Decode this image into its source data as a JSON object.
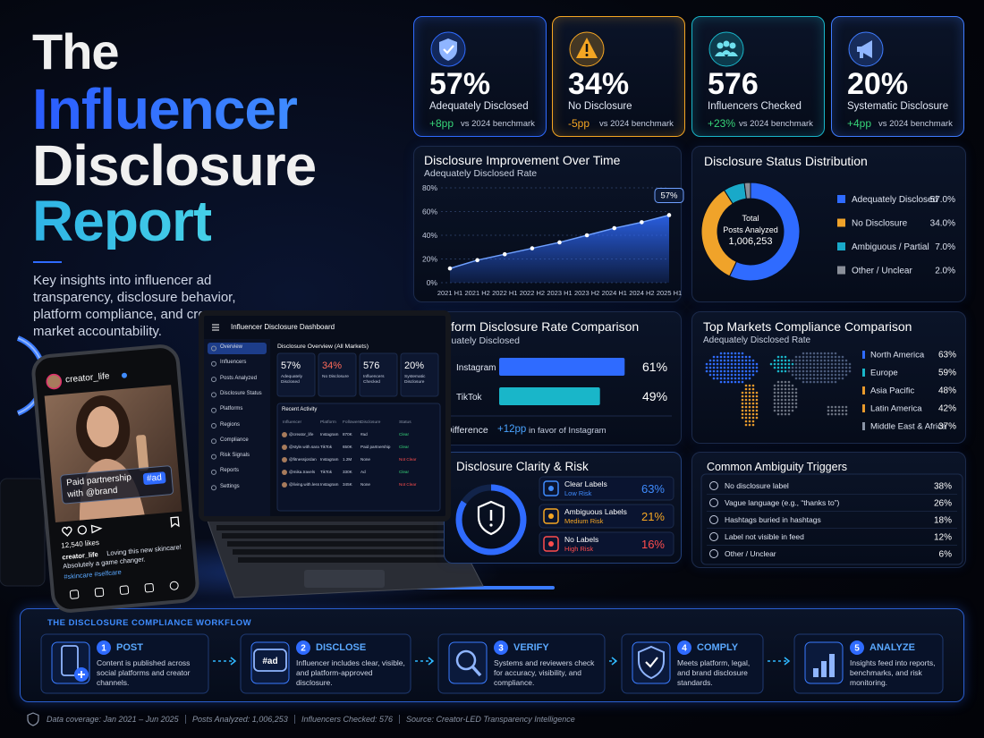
{
  "header": {
    "title": [
      "The",
      "Influencer",
      "Disclosure",
      "Report"
    ],
    "subtitle": "Key insights into influencer ad transparency, disclosure behavior, platform compliance, and cross-market accountability."
  },
  "kpis": [
    {
      "value": "57%",
      "label": "Adequately Disclosed",
      "change": "+8pp",
      "note": "vs 2024 benchmark",
      "color": "#2f6bff",
      "change_color": "#37d67a"
    },
    {
      "value": "34%",
      "label": "No Disclosure",
      "change": "-5pp",
      "note": "vs 2024 benchmark",
      "color": "#f5a623",
      "change_color": "#f5a623"
    },
    {
      "value": "576",
      "label": "Influencers Checked",
      "change": "+23%",
      "note": "vs 2024 benchmark",
      "color": "#19b6c9",
      "change_color": "#37d67a"
    },
    {
      "value": "20%",
      "label": "Systematic Disclosure",
      "change": "+4pp",
      "note": "vs 2024 benchmark",
      "color": "#3f7cff",
      "change_color": "#37d67a"
    }
  ],
  "chart_data": [
    {
      "type": "area",
      "title": "Disclosure Improvement Over Time",
      "subtitle": "Adequately Disclosed Rate",
      "categories": [
        "2021 H1",
        "2021 H2",
        "2022 H1",
        "2022 H2",
        "2023 H1",
        "2023 H2",
        "2024 H1",
        "2024 H2",
        "2025 H1"
      ],
      "values": [
        12,
        19,
        24,
        29,
        34,
        40,
        46,
        51,
        57
      ],
      "value_labels": [
        null,
        null,
        null,
        null,
        null,
        null,
        null,
        null,
        "57%"
      ],
      "color": "#2f6bff",
      "ylim": [
        0,
        80
      ],
      "yticks": [
        {
          "value": 0,
          "label": "0%"
        },
        {
          "value": 20,
          "label": "20%"
        },
        {
          "value": 40,
          "label": "40%"
        },
        {
          "value": 60,
          "label": "60%"
        },
        {
          "value": 80,
          "label": "80%"
        }
      ],
      "grid": true
    },
    {
      "type": "donut",
      "title": "Disclosure Status Distribution",
      "center_text": [
        "Total",
        "Posts Analyzed",
        "1,006,253"
      ],
      "categories": [
        "Adequately Disclosed",
        "No Disclosure",
        "Ambiguous / Partial",
        "Other / Unclear"
      ],
      "values": [
        57,
        34,
        7,
        2
      ],
      "value_labels": [
        "57.0%",
        "34.0%",
        "7.0%",
        "2.0%"
      ],
      "colors": [
        "#2f6bff",
        "#f0a32a",
        "#19a9c9",
        "#8a8f99"
      ]
    },
    {
      "type": "hbar",
      "title": "Platform Disclosure Rate Comparison",
      "subtitle": "Adequately Disclosed",
      "categories": [
        "Instagram",
        "TikTok"
      ],
      "values": [
        61,
        49
      ],
      "value_labels": [
        "61%",
        "49%"
      ],
      "colors": [
        "#2f6bff",
        "#19b6c9"
      ],
      "difference": {
        "label": "Difference",
        "value": "+12pp",
        "note": "in favor of Instagram"
      }
    }
  ],
  "markets": {
    "title": "Top Markets Compliance Comparison",
    "subtitle": "Adequately Disclosed Rate",
    "rows": [
      {
        "name": "North America",
        "value": "63%",
        "color": "#2f6bff"
      },
      {
        "name": "Europe",
        "value": "59%",
        "color": "#19b6c9"
      },
      {
        "name": "Asia Pacific",
        "value": "48%",
        "color": "#e89a2c"
      },
      {
        "name": "Latin America",
        "value": "42%",
        "color": "#e89a2c"
      },
      {
        "name": "Middle East & Africa",
        "value": "37%",
        "color": "#8a94a6"
      }
    ]
  },
  "clarity": {
    "title": "Disclosure Clarity & Risk",
    "rows": [
      {
        "label": "Clear Labels",
        "risk": "Low Risk",
        "value": "63%",
        "color": "#3f8cff"
      },
      {
        "label": "Ambiguous Labels",
        "risk": "Medium Risk",
        "value": "21%",
        "color": "#f5a623"
      },
      {
        "label": "No Labels",
        "risk": "High Risk",
        "value": "16%",
        "color": "#ff4d4d"
      }
    ]
  },
  "triggers": {
    "title": "Common Ambiguity Triggers",
    "rows": [
      {
        "label": "No disclosure label",
        "value": "38%"
      },
      {
        "label": "Vague language (e.g., “thanks to”)",
        "value": "26%"
      },
      {
        "label": "Hashtags buried in hashtags",
        "value": "18%"
      },
      {
        "label": "Label not visible in feed",
        "value": "12%"
      },
      {
        "label": "Other / Unclear",
        "value": "6%"
      }
    ]
  },
  "workflow": {
    "title": "THE DISCLOSURE COMPLIANCE WORKFLOW",
    "bubble": "#ad",
    "steps": [
      {
        "num": "1",
        "title": "POST",
        "text": "Content is published across social platforms and creator channels."
      },
      {
        "num": "2",
        "title": "DISCLOSE",
        "text": "Influencer includes clear, visible, and platform-approved disclosure."
      },
      {
        "num": "3",
        "title": "VERIFY",
        "text": "Systems and reviewers check for accuracy, visibility, and compliance."
      },
      {
        "num": "4",
        "title": "COMPLY",
        "text": "Meets platform, legal, and brand disclosure standards."
      },
      {
        "num": "5",
        "title": "ANALYZE",
        "text": "Insights feed into reports, benchmarks, and risk monitoring."
      }
    ]
  },
  "footer": [
    "Data coverage: Jan 2021 – Jun 2025",
    "Posts Analyzed: 1,006,253",
    "Influencers Checked: 576",
    "Source: Creator-LED Transparency Intelligence"
  ],
  "phone": {
    "username": "creator_life",
    "partnership": "Paid partnership with @brand",
    "tag": "#ad",
    "likes": "12,540 likes",
    "caption_user": "creator_life",
    "caption": "Loving this new skincare! Absolutely a game changer.",
    "hashtags": "#skincare #selfcare"
  },
  "laptop": {
    "title": "Influencer Disclosure Dashboard",
    "nav": [
      "Overview",
      "Influencers",
      "Posts Analyzed",
      "Disclosure Status",
      "Platforms",
      "Regions",
      "Compliance",
      "Risk Signals",
      "Reports",
      "Settings"
    ],
    "overview_title": "Disclosure Overview (All Markets)",
    "kpis": [
      {
        "value": "57%",
        "label": "Adequately Disclosed"
      },
      {
        "value": "34%",
        "label": "No Disclosure"
      },
      {
        "value": "576",
        "label": "Influencers Checked"
      },
      {
        "value": "20%",
        "label": "Systematic Disclosure"
      }
    ],
    "activity_title": "Recent Activity",
    "columns": [
      "Influencer",
      "Platform",
      "Followers",
      "Disclosure",
      "Status"
    ],
    "rows": [
      [
        "@creator_life",
        "Instagram",
        "870K",
        "#ad",
        "Clear"
      ],
      [
        "@style.with.sara",
        "TikTok",
        "650K",
        "Paid partnership",
        "Clear"
      ],
      [
        "@fitnessjordan",
        "Instagram",
        "1.2M",
        "None",
        "Not Clear"
      ],
      [
        "@mika.travels",
        "TikTok",
        "330K",
        "Ad",
        "Clear"
      ],
      [
        "@living.with.less",
        "Instagram",
        "345K",
        "None",
        "Not Clear"
      ]
    ],
    "status_colors": [
      "#37d67a",
      "#37d67a",
      "#ff4d4d",
      "#37d67a",
      "#ff4d4d"
    ]
  }
}
